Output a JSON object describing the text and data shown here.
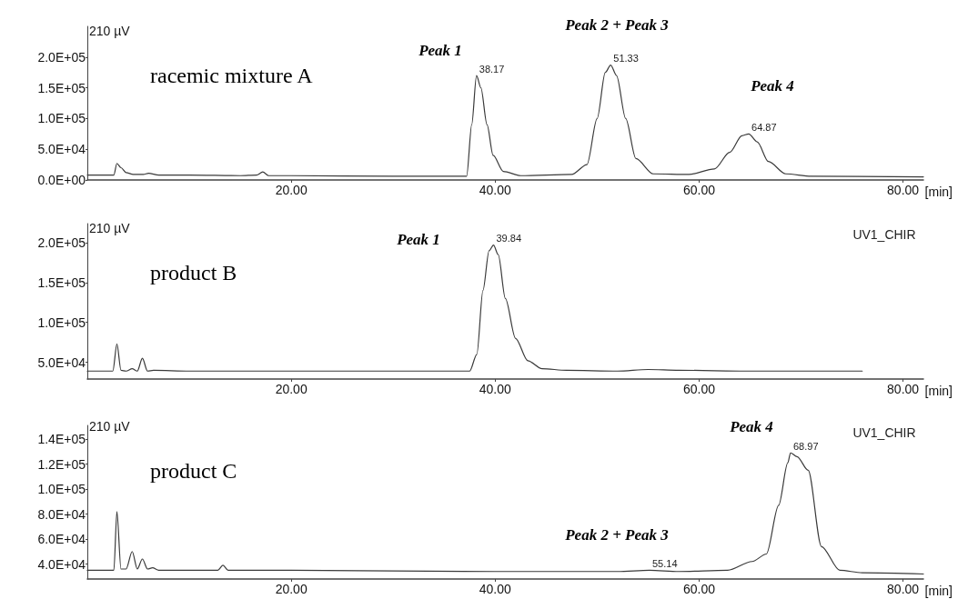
{
  "chart_data": [
    {
      "type": "line",
      "title": "racemic mixture A",
      "xlabel": "[min]",
      "ylabel": "210 µV",
      "color": "#3a3a3a",
      "marker": "none",
      "line_style": "solid",
      "grid": false,
      "xlim": [
        0,
        82
      ],
      "ylim": [
        0,
        250000
      ],
      "xticks": [
        {
          "value": 20,
          "label": "20.00"
        },
        {
          "value": 40,
          "label": "40.00"
        },
        {
          "value": 60,
          "label": "60.00"
        },
        {
          "value": 80,
          "label": "80.00"
        }
      ],
      "yticks": [
        {
          "value": 0,
          "label": "0.0E+00"
        },
        {
          "value": 50000,
          "label": "5.0E+04"
        },
        {
          "value": 100000,
          "label": "1.0E+05"
        },
        {
          "value": 150000,
          "label": "1.5E+05"
        },
        {
          "value": 200000,
          "label": "2.0E+05"
        }
      ],
      "x": [
        0,
        2.6,
        2.9,
        3.3,
        3.8,
        4.5,
        5.5,
        6,
        7,
        10,
        15,
        16.6,
        17.2,
        17.8,
        20,
        30,
        37.2,
        37.7,
        38.17,
        38.6,
        39.2,
        39.8,
        40.8,
        42.5,
        47.5,
        49,
        50,
        50.8,
        51.33,
        51.9,
        52.8,
        53.8,
        55.5,
        59,
        61.5,
        63,
        64.2,
        64.87,
        65.7,
        66.8,
        68.5,
        71,
        82
      ],
      "values": [
        8000,
        8000,
        27000,
        20000,
        12000,
        9000,
        9000,
        11000,
        8000,
        8000,
        7000,
        8000,
        13000,
        7000,
        7000,
        6000,
        6000,
        90000,
        170000,
        150000,
        90000,
        40000,
        14000,
        7000,
        9000,
        25000,
        100000,
        175000,
        187000,
        170000,
        100000,
        35000,
        10000,
        9000,
        18000,
        45000,
        72000,
        75000,
        62000,
        30000,
        10000,
        6000,
        5000
      ],
      "annotations": [
        {
          "text": "38.17",
          "x": 38.17,
          "y": 170000
        },
        {
          "text": "51.33",
          "x": 51.33,
          "y": 187000
        },
        {
          "text": "64.87",
          "x": 64.87,
          "y": 75000
        },
        "Peak 1",
        "Peak 2 + Peak 3",
        "Peak 4"
      ]
    },
    {
      "type": "line",
      "title": "product B",
      "xlabel": "[min]",
      "ylabel": "210 µV",
      "color": "#3a3a3a",
      "marker": "none",
      "line_style": "solid",
      "grid": false,
      "xlim": [
        0,
        82
      ],
      "ylim": [
        29000,
        224000
      ],
      "xticks": [
        {
          "value": 20,
          "label": "20.00"
        },
        {
          "value": 40,
          "label": "40.00"
        },
        {
          "value": 60,
          "label": "60.00"
        },
        {
          "value": 80,
          "label": "80.00"
        }
      ],
      "yticks": [
        {
          "value": 50000,
          "label": "5.0E+04"
        },
        {
          "value": 100000,
          "label": "1.0E+05"
        },
        {
          "value": 150000,
          "label": "1.5E+05"
        },
        {
          "value": 200000,
          "label": "2.0E+05"
        }
      ],
      "x": [
        0,
        2.5,
        2.9,
        3.3,
        3.8,
        4.4,
        4.9,
        5.4,
        5.9,
        6.5,
        10,
        15,
        20,
        30,
        37.5,
        38.2,
        38.8,
        39.4,
        39.84,
        40.3,
        41,
        42,
        43.2,
        44.6,
        47,
        52,
        55,
        58,
        65,
        76
      ],
      "values": [
        39000,
        39000,
        73000,
        40000,
        39000,
        42000,
        39000,
        55000,
        39000,
        40000,
        39000,
        39000,
        39000,
        39000,
        39000,
        60000,
        140000,
        190000,
        197000,
        185000,
        130000,
        80000,
        52000,
        42000,
        40000,
        39000,
        41000,
        40000,
        39000,
        39000
      ],
      "annotations": [
        {
          "text": "39.84",
          "x": 39.84,
          "y": 197000
        },
        "Peak 1",
        "UV1_CHIR"
      ]
    },
    {
      "type": "line",
      "title": "product C",
      "xlabel": "[min]",
      "ylabel": "210 µV",
      "color": "#3a3a3a",
      "marker": "none",
      "line_style": "solid",
      "grid": false,
      "xlim": [
        0,
        82
      ],
      "ylim": [
        28000,
        151000
      ],
      "xticks": [
        {
          "value": 20,
          "label": "20.00"
        },
        {
          "value": 40,
          "label": "40.00"
        },
        {
          "value": 60,
          "label": "60.00"
        },
        {
          "value": 80,
          "label": "80.00"
        }
      ],
      "yticks": [
        {
          "value": 40000,
          "label": "4.0E+04"
        },
        {
          "value": 60000,
          "label": "6.0E+04"
        },
        {
          "value": 80000,
          "label": "8.0E+04"
        },
        {
          "value": 100000,
          "label": "1.0E+05"
        },
        {
          "value": 120000,
          "label": "1.2E+05"
        },
        {
          "value": 140000,
          "label": "1.4E+05"
        }
      ],
      "x": [
        0,
        2.6,
        2.9,
        3.3,
        3.8,
        4.4,
        4.9,
        5.4,
        5.9,
        6.4,
        7,
        10,
        12.8,
        13.3,
        13.8,
        20,
        40,
        52,
        55.14,
        58,
        62.8,
        65.2,
        66.6,
        67.8,
        68.7,
        68.97,
        69.6,
        70.7,
        72,
        73.8,
        76,
        82
      ],
      "values": [
        35000,
        35000,
        82000,
        36000,
        36000,
        50000,
        36000,
        44000,
        36000,
        37000,
        35000,
        35000,
        35000,
        39000,
        35000,
        35000,
        34000,
        34000,
        35000,
        34000,
        35000,
        42000,
        48000,
        87000,
        121000,
        129000,
        126000,
        115000,
        54000,
        35000,
        33000,
        32000
      ],
      "annotations": [
        {
          "text": "55.14",
          "x": 55.14,
          "y": 35000
        },
        {
          "text": "68.97",
          "x": 68.97,
          "y": 129000
        },
        "Peak 4",
        "Peak 2 + Peak 3",
        "UV1_CHIR"
      ]
    }
  ]
}
